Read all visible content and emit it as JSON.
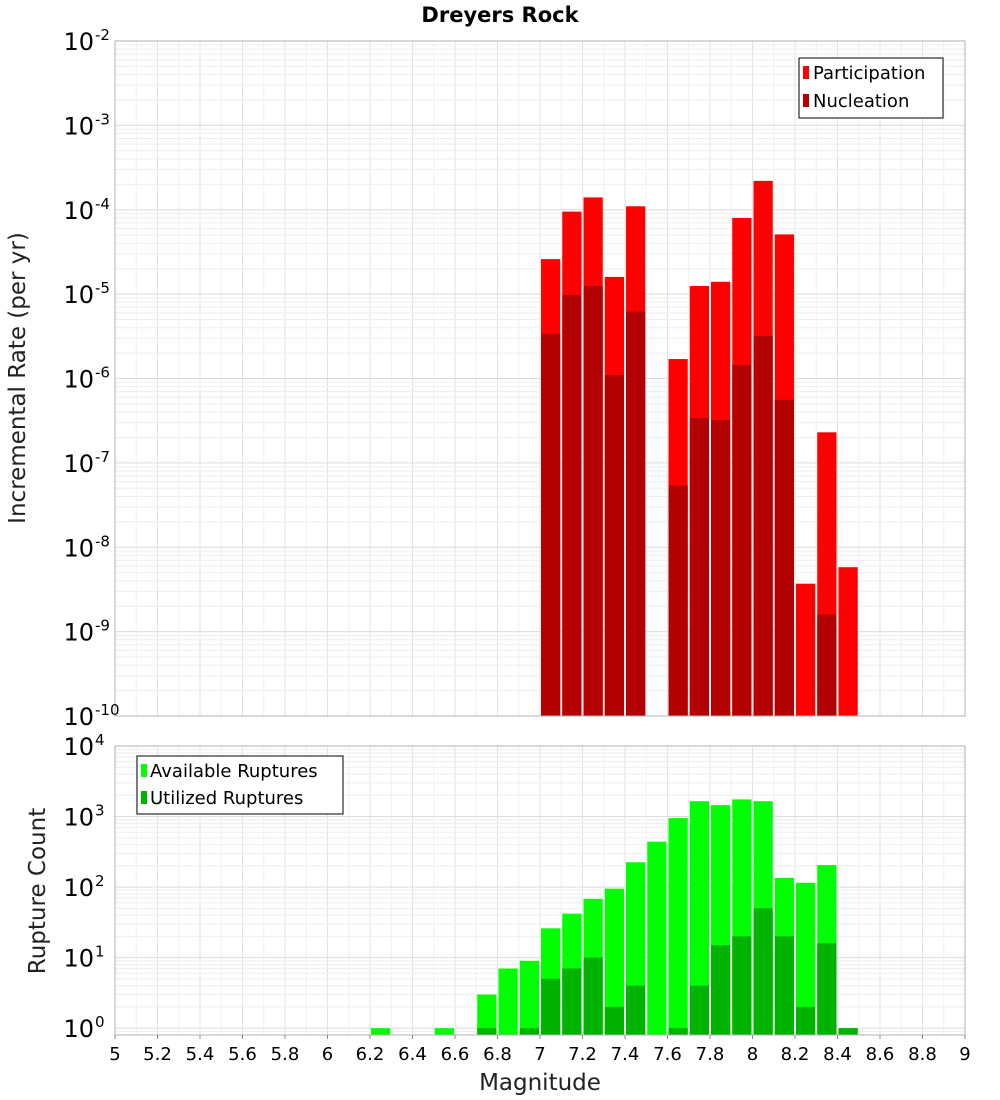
{
  "chart_data": [
    {
      "type": "bar",
      "title": "Dreyers Rock",
      "xlabel": "Magnitude",
      "ylabel": "Incremental Rate (per yr)",
      "yscale": "log",
      "ylim": [
        1e-10,
        0.01
      ],
      "xlim": [
        5,
        9
      ],
      "bin_width": 0.1,
      "legend_position": "top-right",
      "colors": {
        "participation": "#ff0000",
        "nucleation": "#b30000"
      },
      "series": [
        {
          "name": "Participation",
          "x": [
            7.05,
            7.15,
            7.25,
            7.35,
            7.45,
            7.65,
            7.75,
            7.85,
            7.95,
            8.05,
            8.15,
            8.25,
            8.35,
            8.45
          ],
          "values": [
            2.6e-05,
            9.5e-05,
            0.00014,
            1.6e-05,
            0.00011,
            1.7e-06,
            1.25e-05,
            1.4e-05,
            8e-05,
            0.00022,
            5.1e-05,
            3.7e-09,
            2.3e-07,
            5.8e-09
          ]
        },
        {
          "name": "Nucleation",
          "x": [
            7.05,
            7.15,
            7.25,
            7.35,
            7.45,
            7.65,
            7.75,
            7.85,
            7.95,
            8.05,
            8.15,
            8.35
          ],
          "values": [
            3.4e-06,
            9.8e-06,
            1.25e-05,
            1.1e-06,
            6.2e-06,
            5.4e-08,
            3.4e-07,
            3.2e-07,
            1.45e-06,
            3.2e-06,
            5.6e-07,
            1.6e-09
          ]
        }
      ]
    },
    {
      "type": "bar",
      "title": "",
      "xlabel": "Magnitude",
      "ylabel": "Rupture Count",
      "yscale": "log",
      "ylim": [
        0.8,
        10000
      ],
      "xlim": [
        5,
        9
      ],
      "bin_width": 0.1,
      "legend_position": "top-left",
      "colors": {
        "available": "#00ff00",
        "utilized": "#00b300"
      },
      "series": [
        {
          "name": "Available Ruptures",
          "x": [
            6.25,
            6.55,
            6.75,
            6.85,
            6.95,
            7.05,
            7.15,
            7.25,
            7.35,
            7.45,
            7.55,
            7.65,
            7.75,
            7.85,
            7.95,
            8.05,
            8.15,
            8.25,
            8.35,
            8.45
          ],
          "values": [
            1,
            1,
            3,
            7,
            9,
            26,
            42,
            68,
            95,
            225,
            440,
            950,
            1650,
            1450,
            1750,
            1650,
            135,
            115,
            205,
            1
          ]
        },
        {
          "name": "Utilized Ruptures",
          "x": [
            6.75,
            6.95,
            7.05,
            7.15,
            7.25,
            7.35,
            7.45,
            7.65,
            7.75,
            7.85,
            7.95,
            8.05,
            8.15,
            8.25,
            8.35,
            8.45
          ],
          "values": [
            1,
            1,
            5,
            7,
            10,
            2,
            4,
            1,
            4,
            15,
            20,
            50,
            20,
            2,
            16,
            1
          ]
        }
      ]
    }
  ],
  "x_tick_labels": [
    "5",
    "5.2",
    "5.4",
    "5.6",
    "5.8",
    "6",
    "6.2",
    "6.4",
    "6.6",
    "6.8",
    "7",
    "7.2",
    "7.4",
    "7.6",
    "7.8",
    "8",
    "8.2",
    "8.4",
    "8.6",
    "8.8",
    "9"
  ],
  "top_y_tick_bases": [
    "10",
    "10",
    "10",
    "10",
    "10",
    "10",
    "10",
    "10",
    "10"
  ],
  "top_y_tick_exponents": [
    "-2",
    "-3",
    "-4",
    "-5",
    "-6",
    "-7",
    "-8",
    "-9",
    "-10"
  ],
  "bottom_y_tick_bases": [
    "10",
    "10",
    "10",
    "10",
    "10"
  ],
  "bottom_y_tick_exponents": [
    "4",
    "3",
    "2",
    "1",
    "0"
  ]
}
